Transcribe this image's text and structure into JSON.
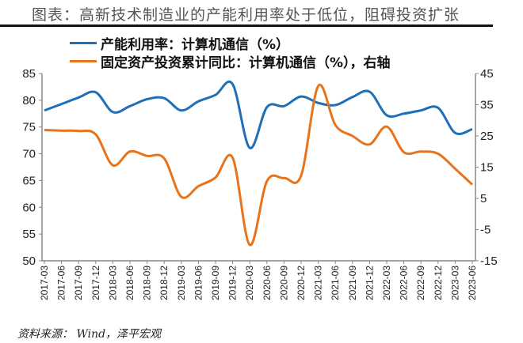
{
  "title": "图表：高新技术制造业的产能利用率处于低位，阻碍投资扩张",
  "source": "资料来源： Wind，泽平宏观",
  "chart_data": {
    "type": "line",
    "grid": false,
    "legend_placement": "top",
    "categories": [
      "2017-03",
      "2017-06",
      "2017-09",
      "2017-12",
      "2018-03",
      "2018-06",
      "2018-09",
      "2018-12",
      "2019-03",
      "2019-06",
      "2019-09",
      "2019-12",
      "2020-03",
      "2020-06",
      "2020-09",
      "2020-12",
      "2021-03",
      "2021-06",
      "2021-09",
      "2021-12",
      "2022-03",
      "2022-06",
      "2022-09",
      "2022-12",
      "2023-03",
      "2023-06"
    ],
    "left_axis": {
      "ylim": [
        50,
        85
      ],
      "ticks": [
        50,
        55,
        60,
        65,
        70,
        75,
        80,
        85
      ]
    },
    "right_axis": {
      "ylim": [
        -15,
        45
      ],
      "ticks": [
        -15,
        -5,
        5,
        15,
        25,
        35,
        45
      ]
    },
    "series": [
      {
        "name": "产能利用率：计算机通信（%）",
        "axis": "left",
        "color": "#1f6fb6",
        "values": [
          78.1,
          79.3,
          80.5,
          81.5,
          77.8,
          78.9,
          80.2,
          80.4,
          78.1,
          79.8,
          81.0,
          83.0,
          71.1,
          78.7,
          78.9,
          80.7,
          79.5,
          79.1,
          80.6,
          81.6,
          77.2,
          77.5,
          78.1,
          78.6,
          73.9,
          74.6
        ]
      },
      {
        "name": "固定资产投资累计同比：计算机通信（%），右轴",
        "axis": "right",
        "color": "#e8731a",
        "values": [
          26.9,
          26.7,
          26.6,
          25.5,
          15.6,
          20.0,
          18.6,
          17.8,
          5.5,
          8.9,
          11.7,
          18.0,
          -9.9,
          10.5,
          11.5,
          12.3,
          41.0,
          28.5,
          25.0,
          22.3,
          28.0,
          19.8,
          20.0,
          19.3,
          14.5,
          9.4
        ]
      }
    ]
  }
}
